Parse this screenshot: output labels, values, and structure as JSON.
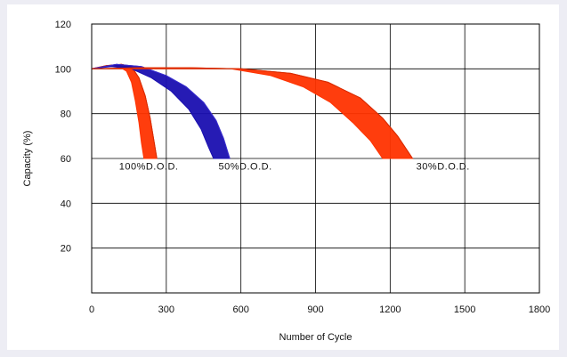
{
  "chart_data": {
    "type": "area",
    "title": "",
    "xlabel": "Number of Cycle",
    "ylabel": "Capacity (%)",
    "xlim": [
      0,
      1800
    ],
    "ylim": [
      0,
      120
    ],
    "xticks": [
      0,
      300,
      600,
      900,
      1200,
      1500,
      1800
    ],
    "yticks": [
      20,
      40,
      60,
      80,
      100,
      120
    ],
    "grid": true,
    "colors": {
      "dod100": "#ff3300",
      "dod50": "#1a0fb0",
      "dod30": "#ff3300",
      "axis": "#000000"
    },
    "series": [
      {
        "name": "100%D.O.D.",
        "upper": [
          [
            0,
            100
          ],
          [
            60,
            101.5
          ],
          [
            120,
            102
          ],
          [
            160,
            101
          ],
          [
            190,
            96
          ],
          [
            215,
            88
          ],
          [
            235,
            78
          ],
          [
            250,
            68
          ],
          [
            262,
            60
          ]
        ],
        "lower": [
          [
            0,
            100
          ],
          [
            60,
            101
          ],
          [
            110,
            101
          ],
          [
            140,
            99
          ],
          [
            160,
            94
          ],
          [
            175,
            86
          ],
          [
            190,
            76
          ],
          [
            200,
            67
          ],
          [
            210,
            60
          ]
        ]
      },
      {
        "name": "50%D.O.D.",
        "upper": [
          [
            0,
            100
          ],
          [
            100,
            102
          ],
          [
            200,
            101
          ],
          [
            300,
            97
          ],
          [
            380,
            92
          ],
          [
            450,
            85
          ],
          [
            500,
            77
          ],
          [
            530,
            69
          ],
          [
            555,
            60
          ]
        ],
        "lower": [
          [
            0,
            100
          ],
          [
            80,
            101
          ],
          [
            160,
            100
          ],
          [
            240,
            96
          ],
          [
            320,
            90
          ],
          [
            390,
            82
          ],
          [
            440,
            73
          ],
          [
            470,
            65
          ],
          [
            490,
            60
          ]
        ]
      },
      {
        "name": "30%D.O.D.",
        "upper": [
          [
            0,
            100
          ],
          [
            200,
            100.5
          ],
          [
            400,
            100.5
          ],
          [
            600,
            100
          ],
          [
            800,
            98
          ],
          [
            950,
            94
          ],
          [
            1080,
            87
          ],
          [
            1170,
            78
          ],
          [
            1230,
            70
          ],
          [
            1290,
            60
          ]
        ],
        "lower": [
          [
            0,
            100
          ],
          [
            200,
            100
          ],
          [
            400,
            100
          ],
          [
            560,
            100
          ],
          [
            720,
            97
          ],
          [
            850,
            92
          ],
          [
            960,
            85
          ],
          [
            1050,
            76
          ],
          [
            1120,
            68
          ],
          [
            1170,
            60
          ]
        ]
      }
    ],
    "annotations": [
      {
        "text": "100%D.O.D.",
        "x": 110,
        "y": 55
      },
      {
        "text": "50%D.O.D.",
        "x": 510,
        "y": 55
      },
      {
        "text": "30%D.O.D.",
        "x": 1305,
        "y": 55
      }
    ]
  }
}
